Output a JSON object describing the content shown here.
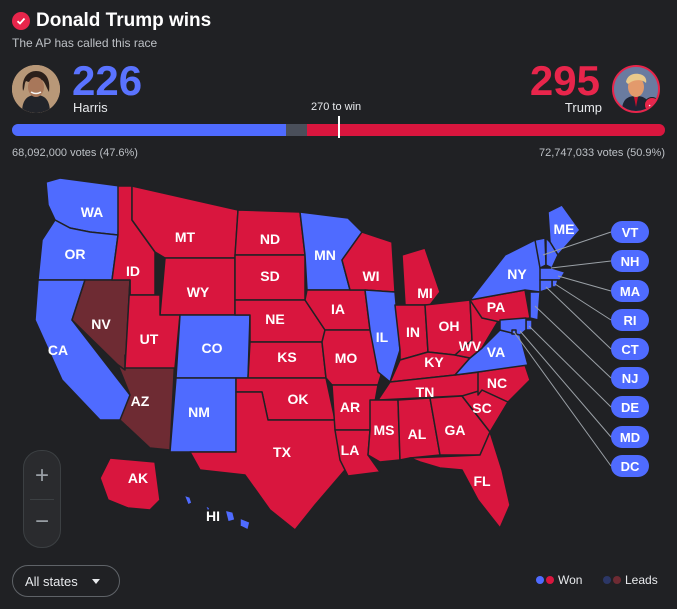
{
  "header": {
    "title": "Donald Trump wins",
    "subtitle": "The AP has called this race"
  },
  "candidates": {
    "harris": {
      "name": "Harris",
      "electoral_votes": "226",
      "popular_votes": "68,092,000 votes (47.6%)",
      "color": "#4f6bff"
    },
    "trump": {
      "name": "Trump",
      "electoral_votes": "295",
      "popular_votes": "72,747,033 votes (50.9%)",
      "color": "#d9163e"
    }
  },
  "progress": {
    "threshold_label": "270 to win",
    "total_electoral_votes": 538,
    "harris_votes": 226,
    "uncalled_votes": 17,
    "trump_votes": 295
  },
  "colors": {
    "won_dem": "#4f6bff",
    "won_rep": "#d9163e",
    "leads_dem": "#2c3766",
    "leads_rep": "#6e2b33",
    "background": "#202124"
  },
  "states": {
    "WA": {
      "label": "WA",
      "status": "won_dem"
    },
    "OR": {
      "label": "OR",
      "status": "won_dem"
    },
    "CA": {
      "label": "CA",
      "status": "won_dem"
    },
    "NV": {
      "label": "NV",
      "status": "leads_rep"
    },
    "AZ": {
      "label": "AZ",
      "status": "leads_rep"
    },
    "ID": {
      "label": "ID",
      "status": "won_rep"
    },
    "MT": {
      "label": "MT",
      "status": "won_rep"
    },
    "WY": {
      "label": "WY",
      "status": "won_rep"
    },
    "UT": {
      "label": "UT",
      "status": "won_rep"
    },
    "CO": {
      "label": "CO",
      "status": "won_dem"
    },
    "NM": {
      "label": "NM",
      "status": "won_dem"
    },
    "ND": {
      "label": "ND",
      "status": "won_rep"
    },
    "SD": {
      "label": "SD",
      "status": "won_rep"
    },
    "NE": {
      "label": "NE",
      "status": "won_rep"
    },
    "KS": {
      "label": "KS",
      "status": "won_rep"
    },
    "OK": {
      "label": "OK",
      "status": "won_rep"
    },
    "TX": {
      "label": "TX",
      "status": "won_rep"
    },
    "MN": {
      "label": "MN",
      "status": "won_dem"
    },
    "IA": {
      "label": "IA",
      "status": "won_rep"
    },
    "MO": {
      "label": "MO",
      "status": "won_rep"
    },
    "AR": {
      "label": "AR",
      "status": "won_rep"
    },
    "LA": {
      "label": "LA",
      "status": "won_rep"
    },
    "WI": {
      "label": "WI",
      "status": "won_rep"
    },
    "IL": {
      "label": "IL",
      "status": "won_dem"
    },
    "MI": {
      "label": "MI",
      "status": "won_rep"
    },
    "IN": {
      "label": "IN",
      "status": "won_rep"
    },
    "OH": {
      "label": "OH",
      "status": "won_rep"
    },
    "KY": {
      "label": "KY",
      "status": "won_rep"
    },
    "TN": {
      "label": "TN",
      "status": "won_rep"
    },
    "MS": {
      "label": "MS",
      "status": "won_rep"
    },
    "AL": {
      "label": "AL",
      "status": "won_rep"
    },
    "GA": {
      "label": "GA",
      "status": "won_rep"
    },
    "FL": {
      "label": "FL",
      "status": "won_rep"
    },
    "SC": {
      "label": "SC",
      "status": "won_rep"
    },
    "NC": {
      "label": "NC",
      "status": "won_rep"
    },
    "VA": {
      "label": "VA",
      "status": "won_dem"
    },
    "WV": {
      "label": "WV",
      "status": "won_rep"
    },
    "PA": {
      "label": "PA",
      "status": "won_rep"
    },
    "NY": {
      "label": "NY",
      "status": "won_dem"
    },
    "ME": {
      "label": "ME",
      "status": "won_dem"
    },
    "AK": {
      "label": "AK",
      "status": "won_rep"
    },
    "HI": {
      "label": "HI",
      "status": "won_dem"
    }
  },
  "small_states": [
    "VT",
    "NH",
    "MA",
    "RI",
    "CT",
    "NJ",
    "DE",
    "MD",
    "DC"
  ],
  "controls": {
    "zoom_in": "+",
    "zoom_out": "−",
    "filter_value": "All states"
  },
  "legend": {
    "won": "Won",
    "leads": "Leads"
  }
}
